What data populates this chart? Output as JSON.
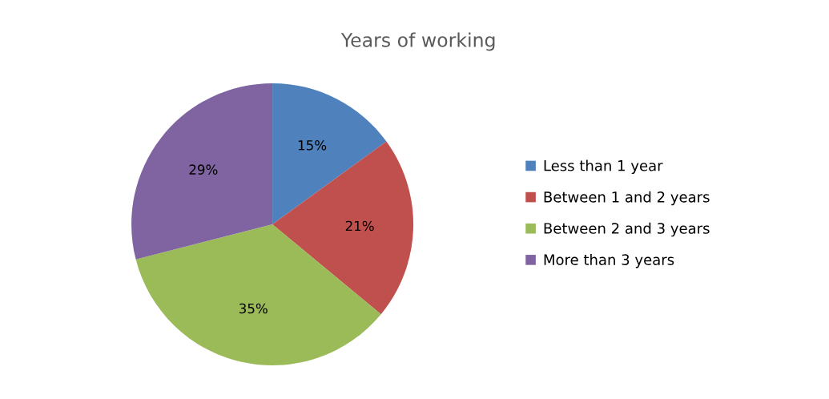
{
  "chart_data": {
    "type": "pie",
    "title": "Years of working",
    "categories": [
      "Less than 1 year",
      "Between 1 and 2 years",
      "Between 2 and 3 years",
      "More than 3 years"
    ],
    "values": [
      15,
      21,
      35,
      29
    ],
    "colors": [
      "#4f81bd",
      "#c0504d",
      "#9bbb59",
      "#8064a2"
    ],
    "value_labels": [
      "15%",
      "21%",
      "35%",
      "29%"
    ],
    "legend": "right"
  }
}
